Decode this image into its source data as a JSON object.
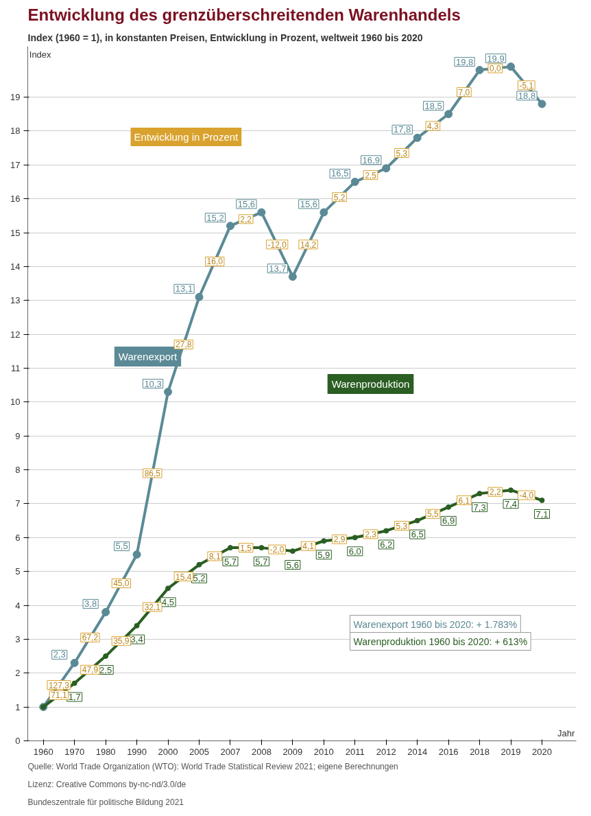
{
  "chart_data": {
    "type": "line",
    "title": "Entwicklung des grenzüberschreitenden Warenhandels",
    "subtitle": "Index (1960 = 1), in konstanten Preisen, Entwicklung in Prozent, weltweit 1960 bis 2020",
    "xlabel": "Jahr",
    "ylabel": "Index",
    "categories": [
      "1960",
      "1970",
      "1980",
      "1990",
      "2000",
      "2005",
      "2007",
      "2008",
      "2009",
      "2010",
      "2011",
      "2012",
      "2014",
      "2016",
      "2018",
      "2019",
      "2020"
    ],
    "series": [
      {
        "name": "Warenexport",
        "color": "#5b8a96",
        "values": [
          1,
          2.3,
          3.8,
          5.5,
          10.3,
          13.1,
          15.2,
          15.6,
          13.7,
          15.6,
          16.5,
          16.9,
          17.8,
          18.5,
          19.8,
          19.9,
          18.8
        ],
        "value_labels": [
          null,
          "2,3",
          "3,8",
          "5,5",
          "10,3",
          "13,1",
          "15,2",
          "15,6",
          "13,7",
          "15,6",
          "16,5",
          "16,9",
          "17,8",
          "18,5",
          "19,8",
          "19,9",
          "18,8"
        ]
      },
      {
        "name": "Warenproduktion",
        "color": "#2a5e22",
        "values": [
          1,
          1.7,
          2.5,
          3.4,
          4.5,
          5.2,
          5.7,
          5.7,
          5.6,
          5.9,
          6.0,
          6.2,
          6.5,
          6.9,
          7.3,
          7.4,
          7.1
        ],
        "value_labels": [
          null,
          "1,7",
          "2,5",
          "3,4",
          "4,5",
          "5,2",
          "5,7",
          "5,7",
          "5,6",
          "5,9",
          "6,0",
          "6,2",
          "6,5",
          "6,9",
          "7,3",
          "7,4",
          "7,1"
        ]
      }
    ],
    "ylim": [
      0,
      20.5
    ],
    "yticks": [
      0,
      1,
      2,
      3,
      4,
      5,
      6,
      7,
      8,
      9,
      10,
      11,
      12,
      13,
      14,
      15,
      16,
      17,
      18,
      19
    ],
    "grid": "y",
    "legend": false,
    "marker": "circle",
    "line_style": "solid",
    "annotations": [
      "127,3",
      "67,2",
      "45,0",
      "86,5",
      "27,8",
      "16,0",
      "2,2",
      "-12,0",
      "14,2",
      "5,2",
      "2,5",
      "5,3",
      "4,3",
      "7,0",
      "0,0",
      "-5,1",
      "71,1",
      "47,9",
      "35,9",
      "32,1",
      "15,4",
      "8,1",
      "1,5",
      "-2,0",
      "4,1",
      "2,9",
      "2,3",
      "5,3",
      "5,5",
      "6,1",
      "2,2",
      "-4,0",
      "Entwicklung in Prozent",
      "Warenexport 1960 bis 2020: + 1.783%",
      "Warenproduktion 1960 bis 2020: + 613%",
      "Quelle: World Trade Organization (WTO): World Trade Statistical Review 2021; eigene Berechnungen",
      "Lizenz: Creative Commons by-nc-nd/3.0/de",
      "Bundeszentrale für politische Bildung 2021"
    ]
  }
}
